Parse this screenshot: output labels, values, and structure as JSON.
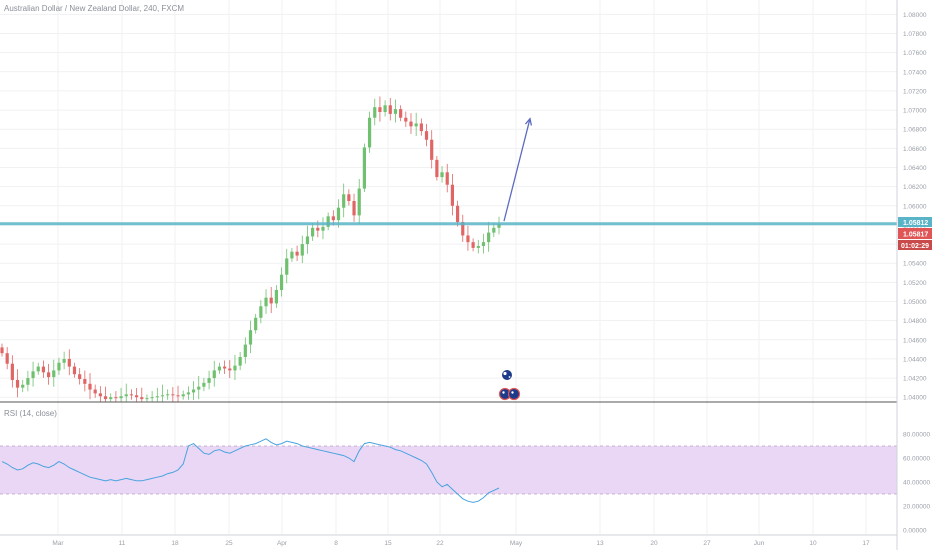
{
  "header": {
    "symbol_title": "Australian Dollar / New Zealand Dollar, 240, FXCM"
  },
  "price_tags": {
    "horizontal_line": "1.05812",
    "last_price": "1.05817",
    "countdown": "01:02:29"
  },
  "rsi_panel": {
    "title": "RSI (14, close)"
  },
  "colors": {
    "up_candle": "#6fc06f",
    "down_candle": "#e06666",
    "support_line": "#5ab4c8",
    "arrow": "#5c6bc0",
    "rsi_line": "#4aa3df",
    "rsi_band": "#e9d7f5",
    "last_price_tag": "#e05555",
    "countdown_tag": "#c94a4a",
    "line_tag": "#5ab4c8"
  },
  "icons": [
    "au-flag-event-icon",
    "nz-flag-event-icon"
  ],
  "chart_data": [
    {
      "type": "candlestick",
      "title": "Australian Dollar / New Zealand Dollar, 240, FXCM",
      "x_ticks": [
        "Mar",
        "11",
        "18",
        "25",
        "Apr",
        "8",
        "15",
        "22",
        "May",
        "13",
        "20",
        "27",
        "Jun",
        "10",
        "17"
      ],
      "y_ticks": [
        "1.08000",
        "1.07800",
        "1.07600",
        "1.07400",
        "1.07200",
        "1.07000",
        "1.06800",
        "1.06600",
        "1.06400",
        "1.06200",
        "1.06000",
        "1.05800",
        "1.05600",
        "1.05400",
        "1.05200",
        "1.05000",
        "1.04800",
        "1.04600",
        "1.04400",
        "1.04200",
        "1.04000"
      ],
      "ylim": [
        1.0395,
        1.0815
      ],
      "horizontal_line": 1.05812,
      "last_price": 1.05817,
      "arrow": {
        "from": [
          0,
          1.0584
        ],
        "to": [
          1,
          1.0691
        ]
      },
      "closes": [
        1.0446,
        1.0435,
        1.0418,
        1.041,
        1.0413,
        1.042,
        1.0427,
        1.0432,
        1.0426,
        1.0421,
        1.0428,
        1.0436,
        1.044,
        1.0432,
        1.0424,
        1.0419,
        1.0414,
        1.0408,
        1.0404,
        1.0401,
        1.0398,
        1.04,
        1.0399,
        1.0401,
        1.0403,
        1.0402,
        1.04,
        1.0398,
        1.0399,
        1.04,
        1.0401,
        1.0402,
        1.0403,
        1.0402,
        1.0401,
        1.0403,
        1.0405,
        1.0408,
        1.0411,
        1.0415,
        1.042,
        1.0428,
        1.0432,
        1.043,
        1.0428,
        1.0433,
        1.0442,
        1.0455,
        1.047,
        1.0483,
        1.0495,
        1.0504,
        1.0498,
        1.0512,
        1.0528,
        1.0545,
        1.0552,
        1.0548,
        1.056,
        1.0568,
        1.0577,
        1.0574,
        1.0578,
        1.0589,
        1.0585,
        1.0598,
        1.0612,
        1.0605,
        1.059,
        1.0618,
        1.0661,
        1.0692,
        1.0703,
        1.0698,
        1.0705,
        1.0696,
        1.0701,
        1.0692,
        1.0688,
        1.0683,
        1.0686,
        1.0678,
        1.0669,
        1.0648,
        1.063,
        1.0635,
        1.0622,
        1.06,
        1.0583,
        1.0569,
        1.0562,
        1.0556,
        1.0558,
        1.0562,
        1.0572,
        1.0577,
        1.0581
      ]
    },
    {
      "type": "line",
      "title": "RSI (14, close)",
      "y_ticks": [
        "80.00000",
        "60.00000",
        "40.00000",
        "20.00000",
        "0.00000"
      ],
      "ylim": [
        0,
        100
      ],
      "band": [
        30,
        70
      ],
      "values": [
        57,
        55,
        52,
        50,
        51,
        54,
        56,
        55,
        53,
        52,
        54,
        57,
        55,
        52,
        50,
        48,
        46,
        44,
        43,
        42,
        41,
        42,
        41,
        42,
        43,
        42,
        41,
        41,
        42,
        43,
        44,
        45,
        47,
        48,
        50,
        55,
        70,
        72,
        68,
        64,
        63,
        66,
        67,
        65,
        64,
        66,
        68,
        70,
        71,
        72,
        74,
        76,
        73,
        71,
        72,
        74,
        73,
        72,
        70,
        69,
        68,
        67,
        66,
        65,
        64,
        63,
        62,
        60,
        57,
        66,
        72,
        73,
        72,
        71,
        70,
        69,
        67,
        66,
        64,
        62,
        60,
        58,
        55,
        48,
        40,
        36,
        38,
        34,
        30,
        26,
        24,
        23,
        24,
        27,
        31,
        33,
        35
      ]
    }
  ]
}
